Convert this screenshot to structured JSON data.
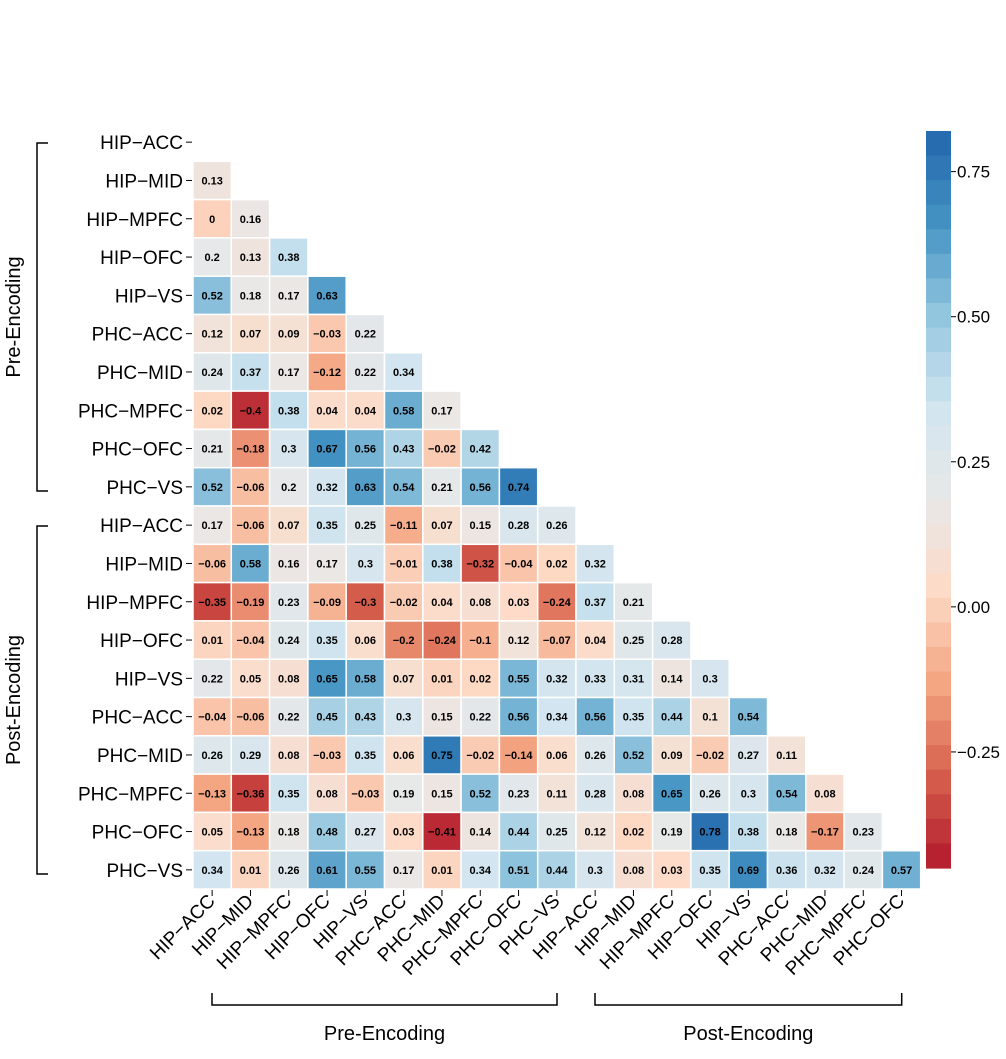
{
  "chart_data": {
    "type": "heatmap",
    "labels": [
      "HIP−ACC",
      "HIP−MID",
      "HIP−MPFC",
      "HIP−OFC",
      "HIP−VS",
      "PHC−ACC",
      "PHC−MID",
      "PHC−MPFC",
      "PHC−OFC",
      "PHC−VS",
      "HIP−ACC",
      "HIP−MID",
      "HIP−MPFC",
      "HIP−OFC",
      "HIP−VS",
      "PHC−ACC",
      "PHC−MID",
      "PHC−MPFC",
      "PHC−OFC",
      "PHC−VS"
    ],
    "values": [
      [],
      [
        0.13
      ],
      [
        0,
        0.16
      ],
      [
        0.2,
        0.13,
        0.38
      ],
      [
        0.52,
        0.18,
        0.17,
        0.63
      ],
      [
        0.12,
        0.07,
        0.09,
        -0.03,
        0.22
      ],
      [
        0.24,
        0.37,
        0.17,
        -0.12,
        0.22,
        0.34
      ],
      [
        0.02,
        -0.4,
        0.38,
        0.04,
        0.04,
        0.58,
        0.17
      ],
      [
        0.21,
        -0.18,
        0.3,
        0.67,
        0.56,
        0.43,
        -0.02,
        0.42
      ],
      [
        0.52,
        -0.06,
        0.2,
        0.32,
        0.63,
        0.54,
        0.21,
        0.56,
        0.74
      ],
      [
        0.17,
        -0.06,
        0.07,
        0.35,
        0.25,
        -0.11,
        0.07,
        0.15,
        0.28,
        0.26
      ],
      [
        -0.06,
        0.58,
        0.16,
        0.17,
        0.3,
        -0.01,
        0.38,
        -0.32,
        -0.04,
        0.02,
        0.32
      ],
      [
        -0.35,
        -0.19,
        0.23,
        -0.09,
        -0.3,
        -0.02,
        0.04,
        0.08,
        0.03,
        -0.24,
        0.37,
        0.21
      ],
      [
        0.01,
        -0.04,
        0.24,
        0.35,
        0.06,
        -0.2,
        -0.24,
        -0.1,
        0.12,
        -0.07,
        0.04,
        0.25,
        0.28
      ],
      [
        0.22,
        0.05,
        0.08,
        0.65,
        0.58,
        0.07,
        0.01,
        0.02,
        0.55,
        0.32,
        0.33,
        0.31,
        0.14,
        0.3
      ],
      [
        -0.04,
        -0.06,
        0.22,
        0.45,
        0.43,
        0.3,
        0.15,
        0.22,
        0.56,
        0.34,
        0.56,
        0.35,
        0.44,
        0.1,
        0.54
      ],
      [
        0.26,
        0.29,
        0.08,
        -0.03,
        0.35,
        0.06,
        0.75,
        -0.02,
        -0.14,
        0.06,
        0.26,
        0.52,
        0.09,
        -0.02,
        0.27,
        0.11
      ],
      [
        -0.13,
        -0.36,
        0.35,
        0.08,
        -0.03,
        0.19,
        0.15,
        0.52,
        0.23,
        0.11,
        0.28,
        0.08,
        0.65,
        0.26,
        0.3,
        0.54,
        0.08
      ],
      [
        0.05,
        -0.13,
        0.18,
        0.48,
        0.27,
        0.03,
        -0.41,
        0.14,
        0.44,
        0.25,
        0.12,
        0.02,
        0.19,
        0.78,
        0.38,
        0.18,
        -0.17,
        0.23
      ],
      [
        0.34,
        0.01,
        0.26,
        0.61,
        0.55,
        0.17,
        0.01,
        0.34,
        0.51,
        0.44,
        0.3,
        0.08,
        0.03,
        0.35,
        0.69,
        0.36,
        0.32,
        0.24,
        0.57
      ]
    ],
    "color_scale": {
      "min": -0.45,
      "max": 0.82,
      "ticks": [
        "0.75",
        "0.50",
        "0.25",
        "0.00",
        "−0.25"
      ],
      "tick_values": [
        0.75,
        0.5,
        0.25,
        0.0,
        -0.25
      ],
      "colors": [
        "#b2182b",
        "#d6604d",
        "#f4a582",
        "#fddbc7",
        "#e8e8e8",
        "#d1e5f0",
        "#92c5de",
        "#4393c3",
        "#2166ac"
      ]
    },
    "groups": {
      "y": [
        "Pre-Encoding",
        "Post-Encoding"
      ],
      "x": [
        "Pre-Encoding",
        "Post-Encoding"
      ]
    }
  }
}
